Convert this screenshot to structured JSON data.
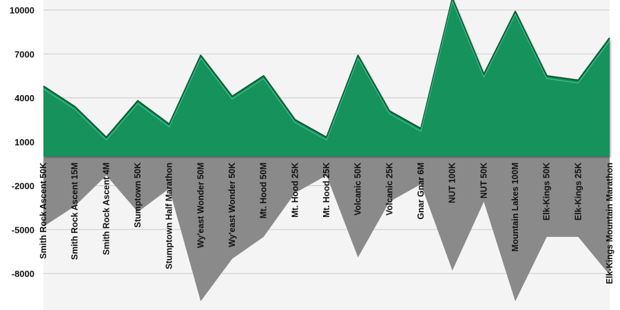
{
  "chart_data": {
    "type": "area",
    "title": "",
    "xlabel": "",
    "ylabel": "",
    "ylim": [
      -10000,
      11000
    ],
    "yticks": [
      -8000,
      -5000,
      -2000,
      1000,
      4000,
      7000,
      10000
    ],
    "grid": true,
    "legend": "none",
    "categories": [
      "Smith Rock Ascent 50K",
      "Smith Rock Ascent 15M",
      "Smith Rock Ascent 4M",
      "Stumptown 50K",
      "Stumptown Half Marathon",
      "Wy'east Wonder 50M",
      "Wy'east Wonder 50K",
      "Mt. Hood 50M",
      "Mt. Hood 25K",
      "Mt. Hood 25K",
      "Volcanic 50K",
      "Volcanic 25K",
      "Gnar Gnar 6M",
      "NUT 100K",
      "NUT 50K",
      "Mountain Lakes 100M",
      "Elk-Kings 50K",
      "Elk-Kings 25K",
      "Elk-Kings Mountain Marathon"
    ],
    "series": [
      {
        "values": [
          4800,
          3400,
          1300,
          3800,
          2200,
          6900,
          4100,
          5500,
          2500,
          1300,
          6900,
          3100,
          1900,
          10800,
          5600,
          9900,
          5500,
          5200,
          8100
        ],
        "color": "#17925c"
      },
      {
        "values": [
          -4800,
          -3400,
          -1300,
          -3800,
          -2200,
          -9900,
          -7000,
          -5500,
          -2500,
          -1300,
          -6900,
          -3100,
          -1900,
          -7800,
          -3100,
          -9900,
          -5500,
          -5500,
          -8100
        ],
        "color": "#8a8a8a"
      }
    ]
  }
}
